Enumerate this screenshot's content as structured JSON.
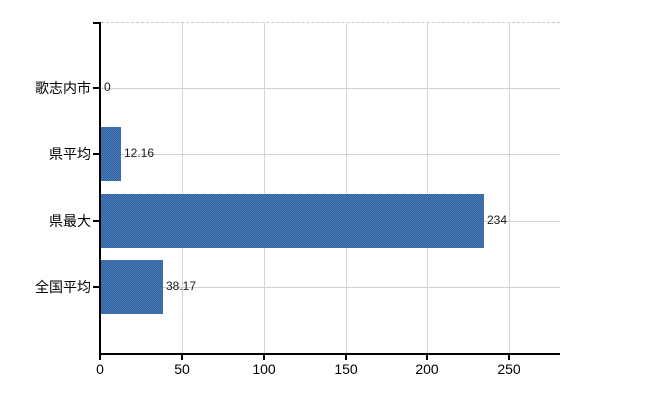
{
  "chart_data": {
    "type": "bar",
    "orientation": "horizontal",
    "title": "",
    "xlabel": "",
    "ylabel": "",
    "categories": [
      "歌志内市",
      "県平均",
      "県最大",
      "全国平均"
    ],
    "values": [
      0,
      12.16,
      234,
      38.17
    ],
    "value_labels": [
      "0",
      "12.16",
      "234",
      "38.17"
    ],
    "xticks": [
      0,
      50,
      100,
      150,
      200,
      250
    ],
    "xtick_labels": [
      "0",
      "50",
      "100",
      "150",
      "200",
      "250"
    ],
    "xlim": [
      0,
      281
    ],
    "grid": true,
    "legend_position": "none",
    "colors": {
      "bar": "#3d6da9",
      "bar_dither_light": "#4d7cb9",
      "bar_dither_dark": "#2e609f",
      "axis": "#000000",
      "grid_vertical": "#d2d7d2",
      "grid_horizontal": "#ccd3cc",
      "top_border": "#c9c9c9",
      "text": "#000000",
      "background": "#ffffff"
    }
  }
}
